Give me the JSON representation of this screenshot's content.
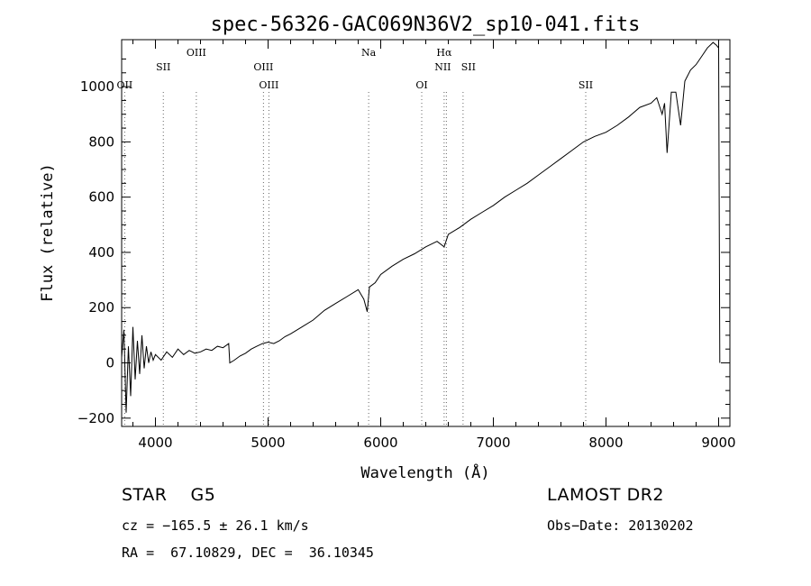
{
  "chart_data": {
    "type": "line",
    "title": "spec-56326-GAC069N36V2_sp10-041.fits",
    "xlabel": "Wavelength (Å)",
    "ylabel": "Flux (relative)",
    "xlim": [
      3700,
      9100
    ],
    "ylim": [
      -230,
      1170
    ],
    "x_ticks": [
      4000,
      5000,
      6000,
      7000,
      8000,
      9000
    ],
    "y_ticks": [
      -200,
      0,
      200,
      400,
      600,
      800,
      1000
    ],
    "grid": false,
    "series": [
      {
        "x": [
          3700,
          3720,
          3740,
          3760,
          3780,
          3800,
          3820,
          3840,
          3860,
          3880,
          3900,
          3920,
          3940,
          3960,
          3980,
          4000,
          4050,
          4100,
          4150,
          4200,
          4250,
          4300,
          4350,
          4400,
          4450,
          4500,
          4550,
          4600,
          4650,
          4660,
          4700,
          4750,
          4800,
          4850,
          4900,
          4950,
          5000,
          5050,
          5100,
          5150,
          5200,
          5300,
          5400,
          5500,
          5600,
          5700,
          5800,
          5850,
          5880,
          5900,
          5950,
          6000,
          6100,
          6200,
          6300,
          6400,
          6500,
          6563,
          6600,
          6700,
          6800,
          6900,
          7000,
          7100,
          7200,
          7300,
          7400,
          7500,
          7600,
          7700,
          7800,
          7900,
          8000,
          8100,
          8200,
          8300,
          8400,
          8450,
          8498,
          8520,
          8542,
          8580,
          8620,
          8662,
          8700,
          8750,
          8800,
          8850,
          8900,
          8950,
          8980,
          9000,
          9005,
          9010
        ],
        "y": [
          20,
          120,
          -180,
          60,
          -120,
          130,
          -60,
          80,
          -40,
          100,
          -20,
          60,
          0,
          40,
          10,
          30,
          10,
          40,
          20,
          50,
          30,
          45,
          35,
          40,
          50,
          45,
          60,
          55,
          70,
          0,
          10,
          25,
          35,
          50,
          60,
          70,
          75,
          70,
          80,
          95,
          105,
          130,
          155,
          190,
          215,
          240,
          265,
          230,
          185,
          275,
          290,
          320,
          350,
          375,
          395,
          420,
          440,
          420,
          465,
          490,
          520,
          545,
          570,
          600,
          625,
          650,
          680,
          710,
          740,
          770,
          800,
          820,
          835,
          860,
          890,
          925,
          940,
          960,
          900,
          940,
          760,
          980,
          980,
          860,
          1020,
          1060,
          1080,
          1110,
          1140,
          1160,
          1150,
          1140,
          600,
          0
        ]
      }
    ],
    "line_markers": [
      {
        "label": "OII",
        "x": 3727
      },
      {
        "label": "SII",
        "x": 4070
      },
      {
        "label": "OIII",
        "x": 4363
      },
      {
        "label": "OIII",
        "x": 4959
      },
      {
        "label": "OIII",
        "x": 5007
      },
      {
        "label": "Na",
        "x": 5893
      },
      {
        "label": "OI",
        "x": 6364
      },
      {
        "label": "Hα",
        "x": 6563
      },
      {
        "label": "NII",
        "x": 6583
      },
      {
        "label": "SII",
        "x": 6731
      },
      {
        "label": "SII",
        "x": 7820
      }
    ]
  },
  "footer": {
    "object_class": "STAR    G5",
    "survey": "LAMOST DR2",
    "redshift": "cz = −165.5 ± 26.1 km/s",
    "obs_date": "Obs−Date: 20130202",
    "coords": "RA =  67.10829, DEC =  36.10345"
  }
}
